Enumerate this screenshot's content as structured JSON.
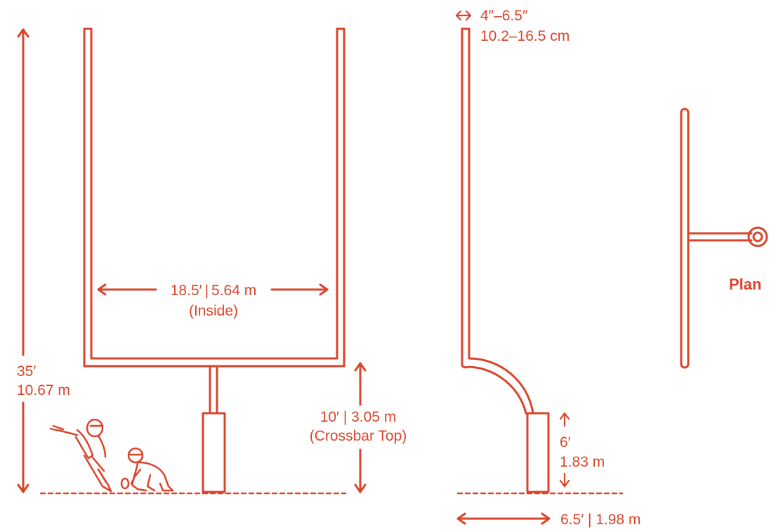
{
  "colors": {
    "primary": "#d9442b",
    "background": "#ffffff"
  },
  "front_view": {
    "height_ft": "35′",
    "height_m": "10.67 m",
    "width_ft": "18.5′",
    "width_m": "5.64 m",
    "width_note": "(Inside)",
    "crossbar_height": "10′ | 3.05 m",
    "crossbar_note": "(Crossbar Top)"
  },
  "side_view": {
    "thickness_in": "4″–6.5″",
    "thickness_cm": "10.2–16.5 cm",
    "pad_height_ft": "6′",
    "pad_height_m": "1.83 m",
    "offset": "6.5′ | 1.98 m"
  },
  "plan_view": {
    "label": "Plan"
  }
}
